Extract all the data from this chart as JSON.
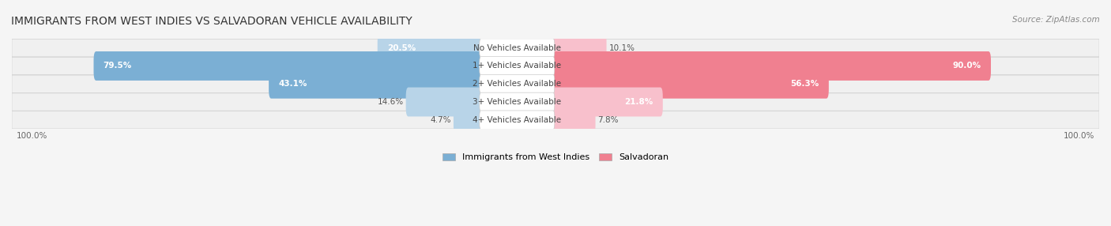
{
  "title": "IMMIGRANTS FROM WEST INDIES VS SALVADORAN VEHICLE AVAILABILITY",
  "source": "Source: ZipAtlas.com",
  "categories": [
    "No Vehicles Available",
    "1+ Vehicles Available",
    "2+ Vehicles Available",
    "3+ Vehicles Available",
    "4+ Vehicles Available"
  ],
  "west_indies": [
    20.5,
    79.5,
    43.1,
    14.6,
    4.7
  ],
  "salvadoran": [
    10.1,
    90.0,
    56.3,
    21.8,
    7.8
  ],
  "west_indies_color": "#7bafd4",
  "salvadoran_color": "#f08090",
  "west_indies_light": "#b8d4e8",
  "salvadoran_light": "#f8c0cc",
  "bar_bg_color": "#e8e8e8",
  "row_bg_color": "#f0f0f0",
  "row_bg_alt": "#e4e4e4",
  "label_color": "#555555",
  "title_color": "#333333",
  "max_val": 100.0,
  "legend_west_indies": "Immigrants from West Indies",
  "legend_salvadoran": "Salvadoran"
}
